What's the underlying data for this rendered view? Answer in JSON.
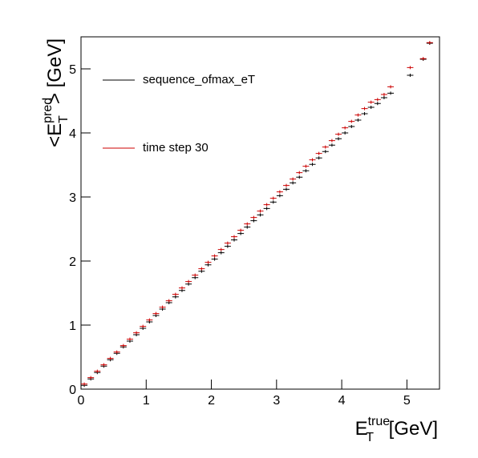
{
  "chart_data": {
    "type": "profile",
    "x_label": {
      "main": "E",
      "sub": "T",
      "sup": "true",
      "rest": " [GeV]"
    },
    "y_label": {
      "main": "<E",
      "sub": "T",
      "sup": "pred",
      "rest": "> [GeV]"
    },
    "xlim": [
      0,
      5.5
    ],
    "ylim": [
      0,
      5.5
    ],
    "xticks": [
      0,
      1,
      2,
      3,
      4,
      5
    ],
    "yticks": [
      0,
      1,
      2,
      3,
      4,
      5
    ],
    "x": [
      0.05,
      0.15,
      0.25,
      0.35,
      0.45,
      0.55,
      0.65,
      0.75,
      0.85,
      0.95,
      1.05,
      1.15,
      1.25,
      1.35,
      1.45,
      1.55,
      1.65,
      1.75,
      1.85,
      1.95,
      2.05,
      2.15,
      2.25,
      2.35,
      2.45,
      2.55,
      2.65,
      2.75,
      2.85,
      2.95,
      3.05,
      3.15,
      3.25,
      3.35,
      3.45,
      3.55,
      3.65,
      3.75,
      3.85,
      3.95,
      4.05,
      4.15,
      4.25,
      4.35,
      4.45,
      4.55,
      4.65,
      4.75,
      5.05,
      5.25,
      5.35
    ],
    "series": [
      {
        "name": "sequence_ofmax_eT",
        "color": "#000000",
        "values": [
          0.06,
          0.16,
          0.26,
          0.36,
          0.46,
          0.56,
          0.66,
          0.75,
          0.85,
          0.95,
          1.05,
          1.15,
          1.25,
          1.35,
          1.44,
          1.54,
          1.64,
          1.74,
          1.84,
          1.94,
          2.03,
          2.13,
          2.23,
          2.33,
          2.43,
          2.53,
          2.63,
          2.72,
          2.82,
          2.92,
          3.02,
          3.12,
          3.22,
          3.31,
          3.41,
          3.51,
          3.61,
          3.71,
          3.81,
          3.91,
          4.0,
          4.1,
          4.2,
          4.3,
          4.4,
          4.46,
          4.55,
          4.62,
          4.9,
          5.15,
          5.4
        ]
      },
      {
        "name": "time step 30",
        "color": "#cc0000",
        "values": [
          0.08,
          0.18,
          0.28,
          0.38,
          0.48,
          0.58,
          0.68,
          0.78,
          0.88,
          0.98,
          1.08,
          1.18,
          1.28,
          1.38,
          1.48,
          1.58,
          1.68,
          1.78,
          1.88,
          1.98,
          2.08,
          2.18,
          2.28,
          2.38,
          2.48,
          2.58,
          2.68,
          2.78,
          2.88,
          2.98,
          3.08,
          3.18,
          3.28,
          3.38,
          3.48,
          3.58,
          3.68,
          3.78,
          3.88,
          3.98,
          4.08,
          4.18,
          4.28,
          4.38,
          4.48,
          4.52,
          4.6,
          4.72,
          5.02,
          5.16,
          5.41
        ]
      }
    ]
  }
}
